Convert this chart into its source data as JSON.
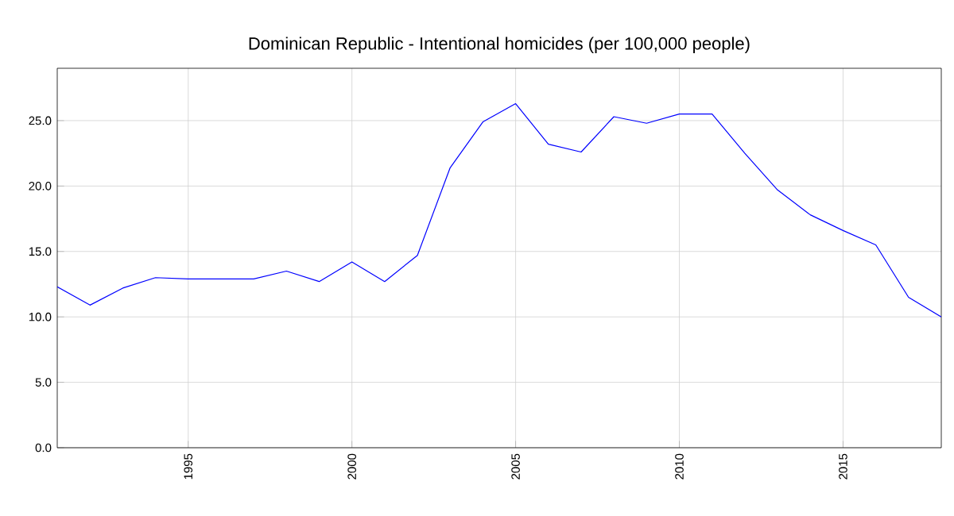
{
  "chart_data": {
    "type": "line",
    "title": "Dominican Republic - Intentional homicides (per 100,000 people)",
    "x": [
      1991,
      1992,
      1993,
      1994,
      1995,
      1996,
      1997,
      1998,
      1999,
      2000,
      2001,
      2002,
      2003,
      2004,
      2005,
      2006,
      2007,
      2008,
      2009,
      2010,
      2011,
      2012,
      2013,
      2014,
      2015,
      2016,
      2017,
      2018
    ],
    "series": [
      {
        "color": "#0000ff",
        "values": [
          12.3,
          10.9,
          12.2,
          13.0,
          12.9,
          12.9,
          12.9,
          13.5,
          12.7,
          14.2,
          12.7,
          14.7,
          21.4,
          24.9,
          26.3,
          23.2,
          22.6,
          25.3,
          24.8,
          25.5,
          25.5,
          22.5,
          19.7,
          17.8,
          16.6,
          15.5,
          11.5,
          10.0
        ]
      }
    ],
    "xlim": [
      1991,
      2018
    ],
    "ylim": [
      0,
      29
    ],
    "xticks": [
      1995,
      2000,
      2005,
      2010,
      2015
    ],
    "yticks": [
      {
        "value": 0,
        "label": "0.0"
      },
      {
        "value": 5,
        "label": "5.0"
      },
      {
        "value": 10,
        "label": "10.0"
      },
      {
        "value": 15,
        "label": "15.0"
      },
      {
        "value": 20,
        "label": "20.0"
      },
      {
        "value": 25,
        "label": "25.0"
      }
    ],
    "grid": true,
    "marker": "none",
    "line_style": "solid"
  }
}
